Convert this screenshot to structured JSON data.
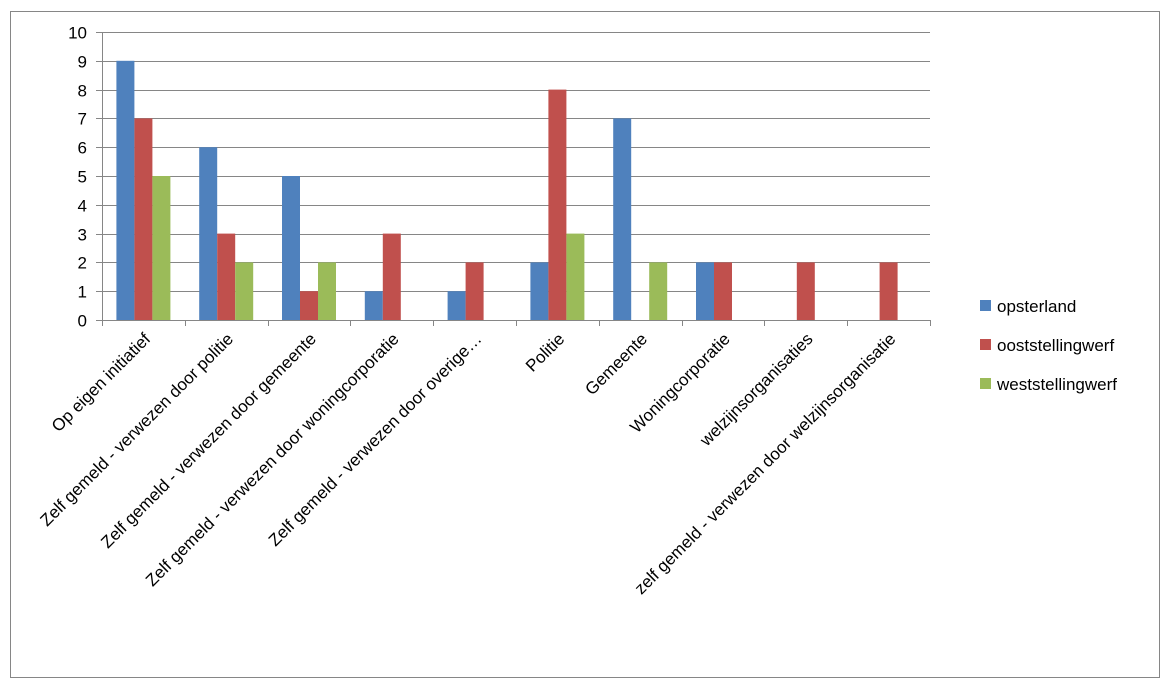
{
  "chart_data": {
    "type": "bar",
    "categories": [
      "Op eigen initiatief",
      "Zelf gemeld - verwezen door politie",
      "Zelf gemeld - verwezen door gemeente",
      "Zelf gemeld - verwezen door woningcorporatie",
      "Zelf gemeld - verwezen door overige…",
      "Politie",
      "Gemeente",
      "Woningcorporatie",
      "welzijnsorganisaties",
      "zelf gemeld - verwezen door welzijnsorganisatie"
    ],
    "series": [
      {
        "name": "opsterland",
        "color": "#4F81BD",
        "values": [
          9,
          6,
          5,
          1,
          1,
          2,
          7,
          2,
          0,
          0
        ]
      },
      {
        "name": "ooststellingwerf",
        "color": "#C0504D",
        "values": [
          7,
          3,
          1,
          3,
          2,
          8,
          0,
          2,
          2,
          2
        ]
      },
      {
        "name": "weststellingwerf",
        "color": "#9BBB59",
        "values": [
          5,
          2,
          2,
          0,
          0,
          3,
          2,
          0,
          0,
          0
        ]
      }
    ],
    "ylim": [
      0,
      10
    ],
    "yticks": [
      "0",
      "1",
      "2",
      "3",
      "4",
      "5",
      "6",
      "7",
      "8",
      "9",
      "10"
    ],
    "grid": true,
    "legend_position": "right",
    "title": "",
    "xlabel": "",
    "ylabel": ""
  }
}
